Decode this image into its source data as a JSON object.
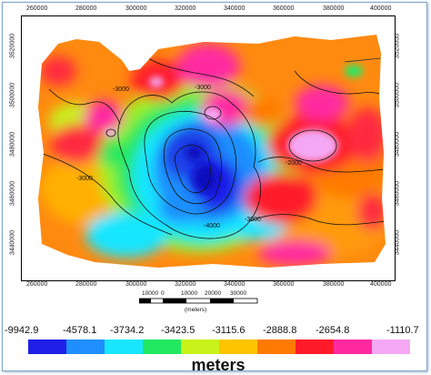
{
  "map": {
    "x_ticks": [
      "260000",
      "280000",
      "300000",
      "320000",
      "340000",
      "360000",
      "380000",
      "400000"
    ],
    "y_ticks_left": [
      "3520000",
      "3500000",
      "3480000",
      "3460000",
      "3440000"
    ],
    "y_ticks_right": [
      "3520000",
      "3500000",
      "3480000",
      "3460000",
      "3440000"
    ],
    "contour_labels": [
      "-3000",
      "-3000",
      "-3000",
      "-2000",
      "-4000",
      "-3000"
    ]
  },
  "scale_bar": {
    "labels": [
      "10000",
      "0",
      "10000",
      "20000",
      "30000"
    ],
    "unit_label": "(meters)"
  },
  "colorbar": {
    "labels": [
      "-9942.9",
      "-4578.1",
      "-3734.2",
      "-3423.5",
      "-3115.6",
      "-2888.8",
      "-2654.8",
      "-1110.7"
    ],
    "colors": [
      "#1f1fe8",
      "#1f8fff",
      "#18e6ff",
      "#22e860",
      "#c8f21a",
      "#ffc400",
      "#ff7a00",
      "#ff1a2a",
      "#ff2aa0",
      "#f4a8f4"
    ],
    "units": "meters"
  }
}
